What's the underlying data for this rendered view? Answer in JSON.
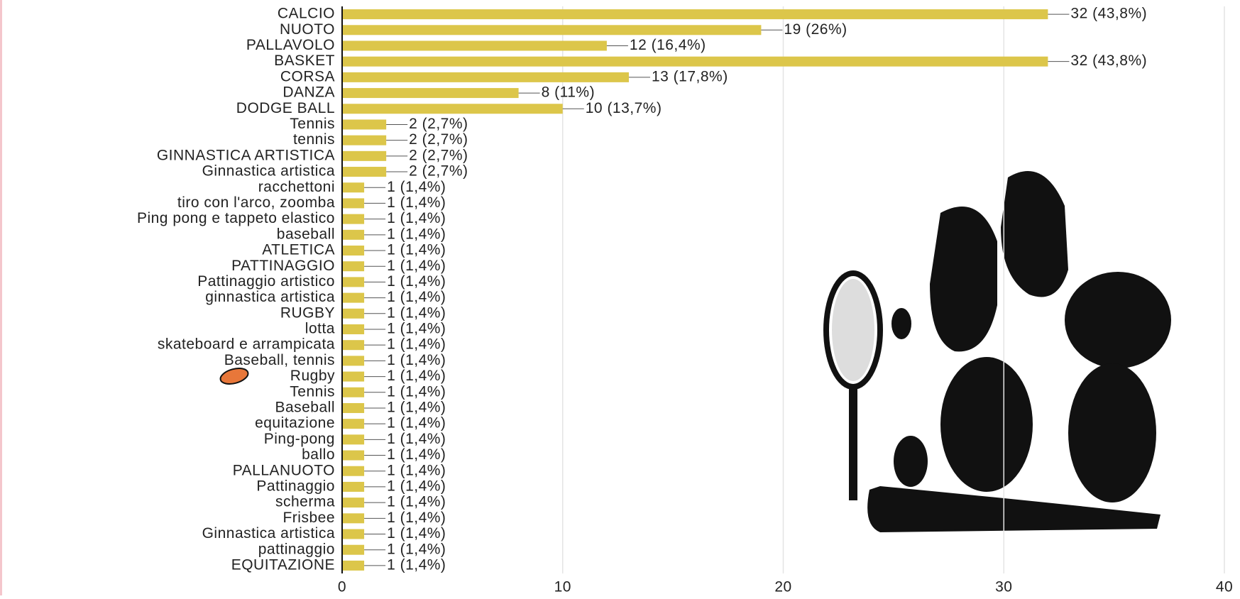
{
  "chart_data": {
    "type": "hbar",
    "categories": [
      "CALCIO",
      "NUOTO",
      "PALLAVOLO",
      "BASKET",
      "CORSA",
      "DANZA",
      "DODGE BALL",
      "Tennis",
      "tennis",
      "GINNASTICA ARTISTICA",
      "Ginnastica artistica",
      "racchettoni",
      "tiro con l'arco, zoomba",
      "Ping pong e tappeto elastico",
      "baseball",
      "ATLETICA",
      "PATTINAGGIO",
      "Pattinaggio artistico",
      "ginnastica artistica",
      "RUGBY",
      "lotta",
      "skateboard e arrampicata",
      "Baseball, tennis",
      "Rugby",
      "Tennis",
      "Baseball",
      "equitazione",
      "Ping-pong",
      "ballo",
      "PALLANUOTO",
      "Pattinaggio",
      "scherma",
      "Frisbee",
      "Ginnastica artistica",
      "pattinaggio",
      "EQUITAZIONE"
    ],
    "values": [
      32,
      19,
      12,
      32,
      13,
      8,
      10,
      2,
      2,
      2,
      2,
      1,
      1,
      1,
      1,
      1,
      1,
      1,
      1,
      1,
      1,
      1,
      1,
      1,
      1,
      1,
      1,
      1,
      1,
      1,
      1,
      1,
      1,
      1,
      1,
      1
    ],
    "value_labels": [
      "32 (43,8%)",
      "19 (26%)",
      "12 (16,4%)",
      "32 (43,8%)",
      "13 (17,8%)",
      "8 (11%)",
      "10 (13,7%)",
      "2 (2,7%)",
      "2 (2,7%)",
      "2 (2,7%)",
      "2 (2,7%)",
      "1 (1,4%)",
      "1 (1,4%)",
      "1 (1,4%)",
      "1 (1,4%)",
      "1 (1,4%)",
      "1 (1,4%)",
      "1 (1,4%)",
      "1 (1,4%)",
      "1 (1,4%)",
      "1 (1,4%)",
      "1 (1,4%)",
      "1 (1,4%)",
      "1 (1,4%)",
      "1 (1,4%)",
      "1 (1,4%)",
      "1 (1,4%)",
      "1 (1,4%)",
      "1 (1,4%)",
      "1 (1,4%)",
      "1 (1,4%)",
      "1 (1,4%)",
      "1 (1,4%)",
      "1 (1,4%)",
      "1 (1,4%)",
      "1 (1,4%)"
    ],
    "color": "#dcc64a",
    "xlim": [
      0,
      40
    ],
    "xticks": [
      0,
      10,
      20,
      30,
      40
    ],
    "grid": true
  }
}
